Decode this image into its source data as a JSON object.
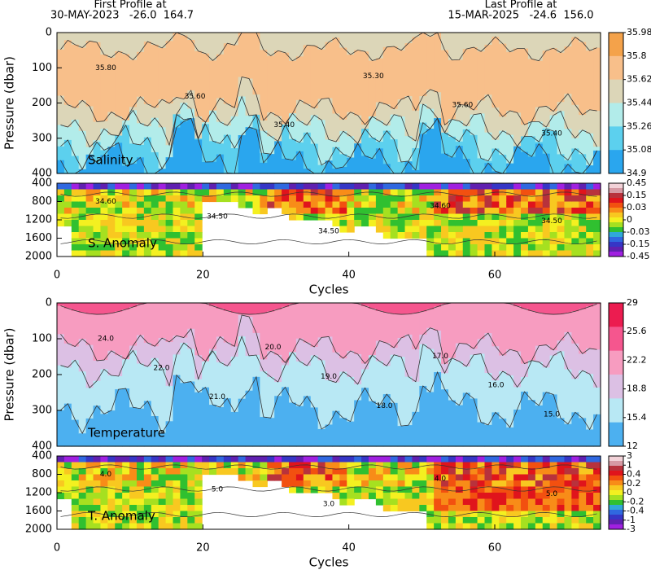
{
  "header": {
    "first_label": "First Profile at",
    "first_info": "30-MAY-2023   -26.0  164.7",
    "last_label": "Last Profile at",
    "last_info": "15-MAR-2025   -24.6  156.0"
  },
  "chart_data": [
    {
      "type": "contour",
      "title": "Salinity",
      "y_label": "Pressure (dbar)",
      "xlim": [
        0,
        74.5
      ],
      "ylim": [
        400,
        0
      ],
      "yticks": [
        0,
        100,
        200,
        300,
        400
      ],
      "cbar_ticks": [
        35.98,
        35.8,
        35.62,
        35.44,
        35.26,
        35.08,
        34.9
      ],
      "cbar_colors": [
        "#f4a24a",
        "#f8bf8a",
        "#dcd6b8",
        "#b2ecea",
        "#5cd0ee",
        "#2aa6ee"
      ],
      "contour_labels": [
        "35.80",
        "35.60",
        "35.40",
        "35.30",
        "35.60",
        "35.40"
      ]
    },
    {
      "type": "contour",
      "title": "S. Anomaly",
      "x_label": "Cycles",
      "xlim": [
        0,
        74.5
      ],
      "ylim": [
        2000,
        400
      ],
      "yticks": [
        400,
        800,
        1200,
        1600,
        2000
      ],
      "xticks": [
        0,
        20,
        40,
        60
      ],
      "cbar_ticks": [
        0.45,
        0.15,
        0.03,
        0,
        -0.03,
        -0.15,
        -0.45
      ],
      "cbar_colors": [
        "#f2d2d8",
        "#d69aa4",
        "#b8323c",
        "#e0141c",
        "#f25010",
        "#f88c18",
        "#f8c820",
        "#f4f020",
        "#a6e020",
        "#30c030",
        "#30a8d8",
        "#3068e0",
        "#3636c6",
        "#6020b0",
        "#a020e0"
      ],
      "contour_labels": [
        "34.60",
        "34.50",
        "34.50",
        "34.60",
        "34.50"
      ]
    },
    {
      "type": "contour",
      "title": "Temperature",
      "y_label": "Pressure (dbar)",
      "xlim": [
        0,
        74.5
      ],
      "ylim": [
        400,
        0
      ],
      "yticks": [
        0,
        100,
        200,
        300,
        400
      ],
      "cbar_ticks": [
        29,
        25.6,
        22.2,
        18.8,
        15.4,
        12
      ],
      "cbar_colors": [
        "#ec1c50",
        "#f5568e",
        "#f79cc0",
        "#dcc0e4",
        "#b8e8f4",
        "#4cb0f0"
      ],
      "contour_labels": [
        "24.0",
        "22.0",
        "21.0",
        "20.0",
        "19.0",
        "18.0",
        "17.0",
        "16.0",
        "15.0"
      ]
    },
    {
      "type": "contour",
      "title": "T. Anomaly",
      "x_label": "Cycles",
      "xlim": [
        0,
        74.5
      ],
      "ylim": [
        2000,
        400
      ],
      "yticks": [
        400,
        800,
        1200,
        1600,
        2000
      ],
      "xticks": [
        0,
        20,
        40,
        60
      ],
      "cbar_ticks": [
        3,
        1,
        0.4,
        0.2,
        0,
        -0.2,
        -0.4,
        -1,
        -3
      ],
      "cbar_colors": [
        "#f2d2d8",
        "#d69aa4",
        "#b8323c",
        "#e0141c",
        "#f25010",
        "#f88c18",
        "#f8c820",
        "#f4f020",
        "#a6e020",
        "#30c030",
        "#30a8d8",
        "#3068e0",
        "#3636c6",
        "#6020b0",
        "#a020e0"
      ],
      "contour_labels": [
        "4.0",
        "5.0",
        "3.0",
        "4.0",
        "5.0"
      ]
    }
  ]
}
